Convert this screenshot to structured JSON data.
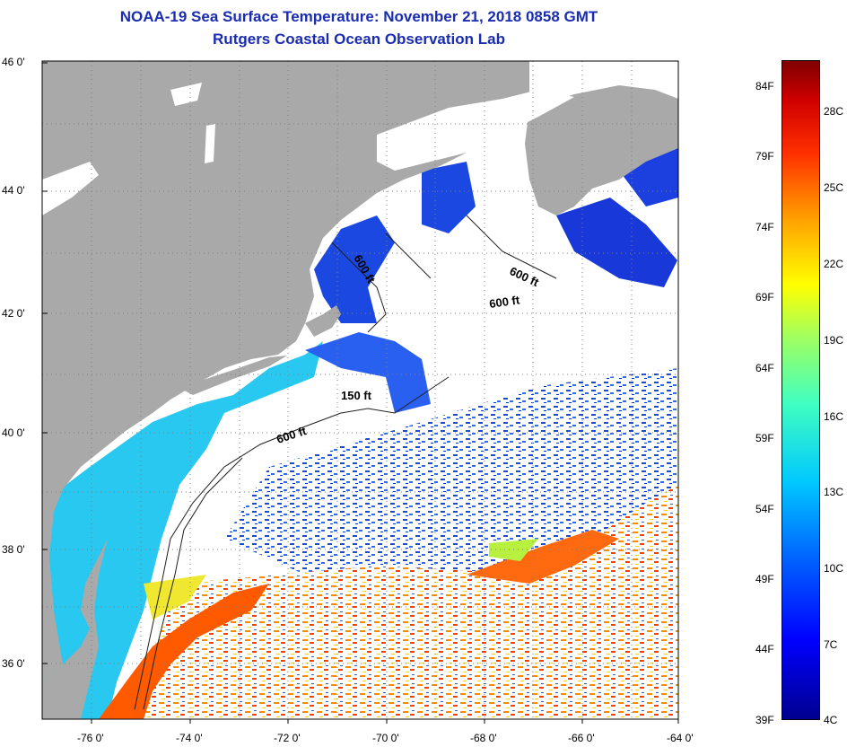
{
  "header": {
    "title": "NOAA-19 Sea Surface Temperature:  November 21, 2018 0858 GMT",
    "subtitle": "Rutgers Coastal Ocean Observation Lab"
  },
  "map": {
    "lat_labels": [
      "46 0'",
      "44 0'",
      "42 0'",
      "40 0'",
      "38 0'",
      "36 0'"
    ],
    "lon_labels": [
      "-76 0'",
      "-74 0'",
      "-72 0'",
      "-70 0'",
      "-68 0'",
      "-66 0'",
      "-64 0'"
    ],
    "depth_labels": [
      "600 ft",
      "600 ft",
      "600 ft",
      "150 ft",
      "600 ft"
    ],
    "colors": {
      "land": "#a9a9a9",
      "cloud": "#ffffff",
      "grid": "#808080"
    }
  },
  "colorbar": {
    "fahrenheit": [
      "84F",
      "79F",
      "74F",
      "69F",
      "64F",
      "59F",
      "54F",
      "49F",
      "44F",
      "39F"
    ],
    "celsius": [
      "28C",
      "25C",
      "22C",
      "19C",
      "16C",
      "13C",
      "10C",
      "7C",
      "4C"
    ]
  }
}
